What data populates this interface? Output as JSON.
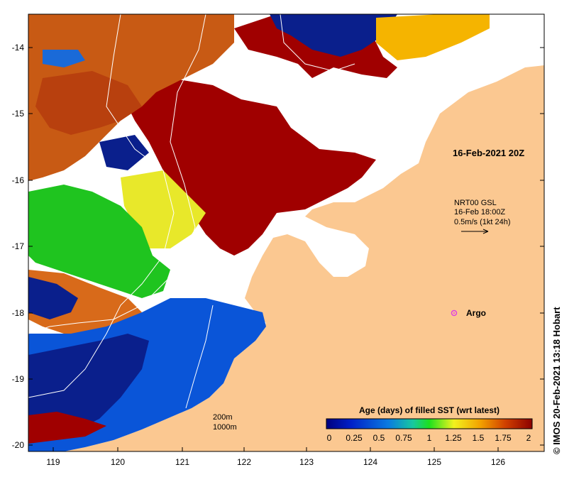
{
  "map": {
    "x_ticks": [
      "119",
      "120",
      "121",
      "122",
      "123",
      "124",
      "125",
      "126"
    ],
    "y_ticks": [
      "-14",
      "-15",
      "-16",
      "-17",
      "-18",
      "-19",
      "-20"
    ],
    "date_label": "16-Feb-2021 20Z",
    "product_line1": "NRT00 GSL",
    "product_line2": "16-Feb 18:00Z",
    "product_line3": "0.5m/s (1kt 24h)",
    "argo_label": "Argo",
    "depth_200": "200m",
    "depth_1000": "1000m",
    "credit": "© IMOS 20-Feb-2021 13:18 Hobart"
  },
  "legend": {
    "title": "Age (days) of filled SST (wrt latest)",
    "ticks": [
      "0",
      "0.25",
      "0.5",
      "0.75",
      "1",
      "1.25",
      "1.5",
      "1.75",
      "2"
    ]
  },
  "colors": {
    "land": "#fbc891",
    "old": "#a00000",
    "orange": "#c85a14",
    "yellow": "#f2e32a",
    "green": "#1fc41f",
    "blue": "#0a55d8",
    "navy": "#0a1f8c",
    "argo": "#e040e0"
  }
}
